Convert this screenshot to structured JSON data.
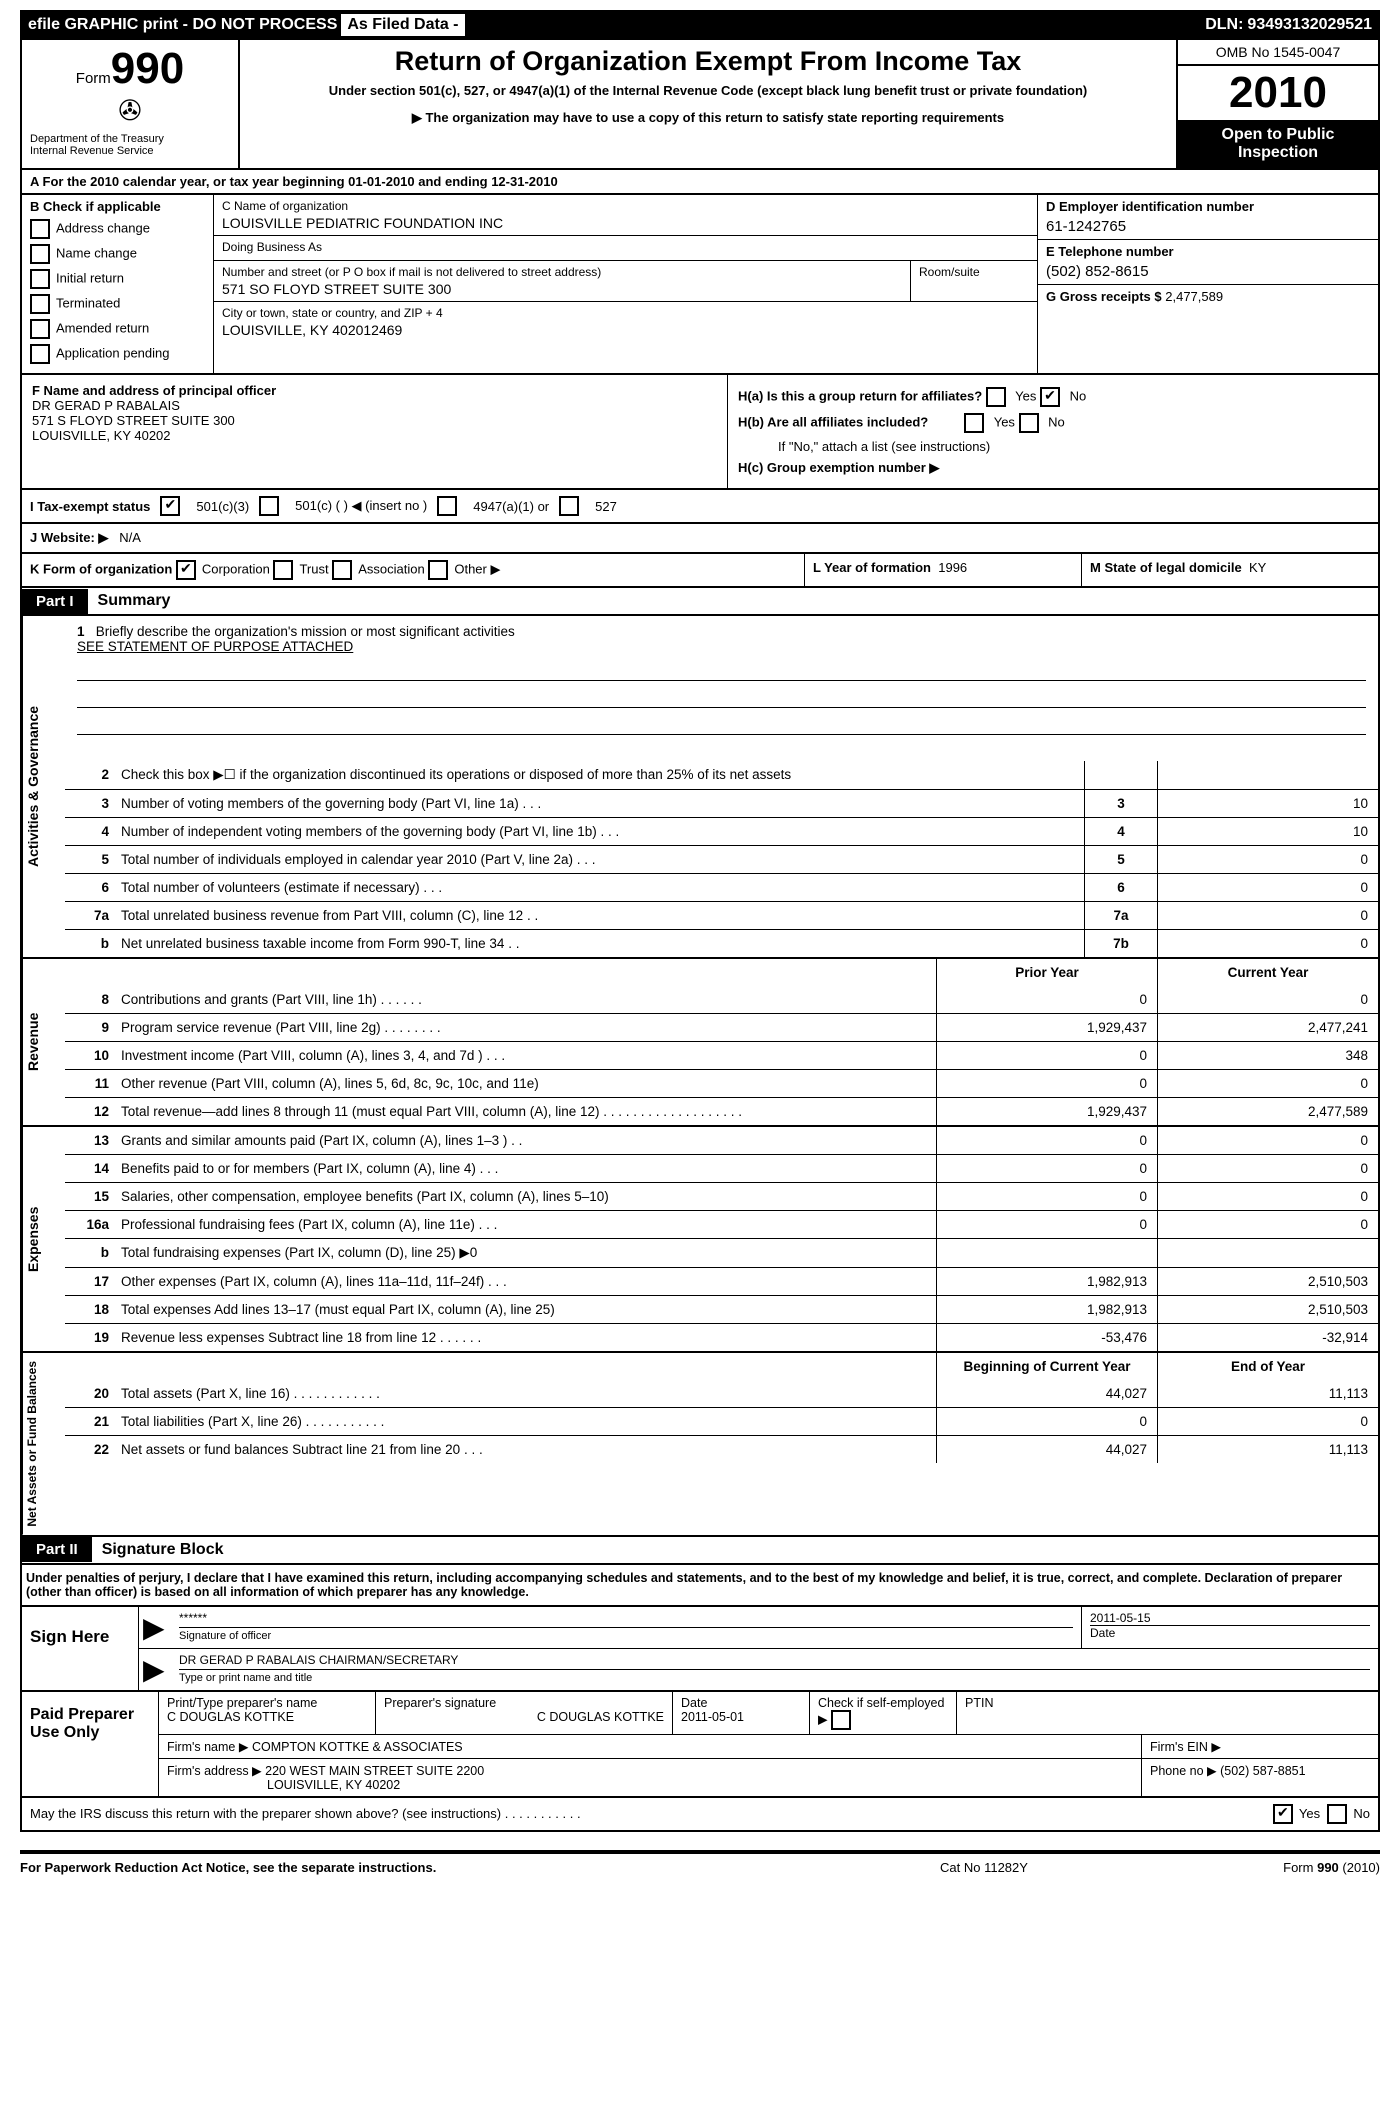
{
  "topbar": {
    "efile": "efile GRAPHIC print - DO NOT PROCESS",
    "asfiled": "As Filed Data -",
    "dln_label": "DLN:",
    "dln": "93493132029521"
  },
  "header": {
    "form_label": "Form",
    "form_num": "990",
    "dept": "Department of the Treasury",
    "irs": "Internal Revenue Service",
    "title": "Return of Organization Exempt From Income Tax",
    "sub": "Under section 501(c), 527, or 4947(a)(1) of the Internal Revenue Code (except black lung benefit trust or private foundation)",
    "note": "▶ The organization may have to use a copy of this return to satisfy state reporting requirements",
    "omb": "OMB No 1545-0047",
    "year": "2010",
    "open": "Open to Public Inspection"
  },
  "section_a": "A  For the 2010 calendar year, or tax year beginning 01-01-2010     and ending 12-31-2010",
  "col_b": {
    "label": "B  Check if applicable",
    "opts": [
      "Address change",
      "Name change",
      "Initial return",
      "Terminated",
      "Amended return",
      "Application pending"
    ]
  },
  "col_c": {
    "name_lbl": "C Name of organization",
    "name": "LOUISVILLE PEDIATRIC FOUNDATION INC",
    "dba_lbl": "Doing Business As",
    "dba": "",
    "street_lbl": "Number and street (or P O  box if mail is not delivered to street address)",
    "street": "571 SO FLOYD STREET SUITE 300",
    "room_lbl": "Room/suite",
    "city_lbl": "City or town, state or country, and ZIP + 4",
    "city": "LOUISVILLE, KY  402012469"
  },
  "col_d": {
    "ein_lbl": "D Employer identification number",
    "ein": "61-1242765",
    "tel_lbl": "E Telephone number",
    "tel": "(502) 852-8615",
    "gross_lbl": "G Gross receipts $",
    "gross": "2,477,589"
  },
  "f": {
    "label": "F    Name and address of principal officer",
    "name": "DR GERAD P RABALAIS",
    "addr1": "571 S FLOYD STREET SUITE 300",
    "addr2": "LOUISVILLE, KY  40202"
  },
  "h": {
    "ha": "H(a)  Is this a group return for affiliates?",
    "hb": "H(b)  Are all affiliates included?",
    "hb_note": "If \"No,\" attach a list  (see instructions)",
    "hc": "H(c)   Group exemption number ▶"
  },
  "row_i": {
    "label": "I    Tax-exempt status",
    "o1": "501(c)(3)",
    "o2": "501(c) (    ) ◀ (insert no )",
    "o3": "4947(a)(1) or",
    "o4": "527"
  },
  "row_j": {
    "label": "J   Website: ▶",
    "val": "N/A"
  },
  "row_k": {
    "k1_label": "K Form of organization",
    "k1_opts": [
      "Corporation",
      "Trust",
      "Association",
      "Other ▶"
    ],
    "k2_label": "L Year of formation",
    "k2_val": "1996",
    "k3_label": "M State of legal domicile",
    "k3_val": "KY"
  },
  "part1": {
    "hdr": "Part I",
    "title": "Summary"
  },
  "mission": {
    "num": "1",
    "lbl": "Briefly describe the organization's mission or most significant activities",
    "val": "SEE STATEMENT OF PURPOSE ATTACHED"
  },
  "gov_lines": [
    {
      "n": "2",
      "t": "Check this box ▶☐ if the organization discontinued its operations or disposed of more than 25% of its net assets",
      "c1": "",
      "c2": ""
    },
    {
      "n": "3",
      "t": "Number of voting members of the governing body (Part VI, line 1a)   .   .   .",
      "c1": "3",
      "c2": "10"
    },
    {
      "n": "4",
      "t": "Number of independent voting members of the governing body (Part VI, line 1b)   .   .   .",
      "c1": "4",
      "c2": "10"
    },
    {
      "n": "5",
      "t": "Total number of individuals employed in calendar year 2010 (Part V, line 2a)   .   .   .",
      "c1": "5",
      "c2": "0"
    },
    {
      "n": "6",
      "t": "Total number of volunteers (estimate if necessary)   .   .   .",
      "c1": "6",
      "c2": "0"
    },
    {
      "n": "7a",
      "t": "Total unrelated business revenue from Part VIII, column (C), line 12   .   .",
      "c1": "7a",
      "c2": "0"
    },
    {
      "n": "b",
      "t": "Net unrelated business taxable income from Form 990-T, line 34   .   .",
      "c1": "7b",
      "c2": "0"
    }
  ],
  "rev_hdr": {
    "prior": "Prior Year",
    "curr": "Current Year"
  },
  "rev_lines": [
    {
      "n": "8",
      "t": "Contributions and grants (Part VIII, line 1h)   .   .   .   .   .   .",
      "p": "0",
      "c": "0"
    },
    {
      "n": "9",
      "t": "Program service revenue (Part VIII, line 2g)   .   .   .   .   .   .   .   .",
      "p": "1,929,437",
      "c": "2,477,241"
    },
    {
      "n": "10",
      "t": "Investment income (Part VIII, column (A), lines 3, 4, and 7d )   .   .   .",
      "p": "0",
      "c": "348"
    },
    {
      "n": "11",
      "t": "Other revenue (Part VIII, column (A), lines 5, 6d, 8c, 9c, 10c, and 11e)",
      "p": "0",
      "c": "0"
    },
    {
      "n": "12",
      "t": "Total revenue—add lines 8 through 11 (must equal Part VIII, column (A), line 12) .   .   .   .   .   .   .   .   .   .   .   .   .   .   .   .   .   .   .",
      "p": "1,929,437",
      "c": "2,477,589"
    }
  ],
  "exp_lines": [
    {
      "n": "13",
      "t": "Grants and similar amounts paid (Part IX, column (A), lines 1–3 )   .   .",
      "p": "0",
      "c": "0"
    },
    {
      "n": "14",
      "t": "Benefits paid to or for members (Part IX, column (A), line 4)   .   .   .",
      "p": "0",
      "c": "0"
    },
    {
      "n": "15",
      "t": "Salaries, other compensation, employee benefits (Part IX, column (A), lines 5–10)",
      "p": "0",
      "c": "0"
    },
    {
      "n": "16a",
      "t": "Professional fundraising fees (Part IX, column (A), line 11e)   .   .   .",
      "p": "0",
      "c": "0"
    },
    {
      "n": "b",
      "t": "Total fundraising expenses (Part IX, column (D), line 25) ▶0",
      "p": "",
      "c": ""
    },
    {
      "n": "17",
      "t": "Other expenses (Part IX, column (A), lines 11a–11d, 11f–24f)   .   .   .",
      "p": "1,982,913",
      "c": "2,510,503"
    },
    {
      "n": "18",
      "t": "Total expenses  Add lines 13–17 (must equal Part IX, column (A), line 25)",
      "p": "1,982,913",
      "c": "2,510,503"
    },
    {
      "n": "19",
      "t": "Revenue less expenses  Subtract line 18 from line 12   .   .   .   .   .   .",
      "p": "-53,476",
      "c": "-32,914"
    }
  ],
  "na_hdr": {
    "begin": "Beginning of Current Year",
    "end": "End of Year"
  },
  "na_lines": [
    {
      "n": "20",
      "t": "Total assets (Part X, line 16)   .   .   .   .   .   .   .   .   .   .   .   .",
      "p": "44,027",
      "c": "11,113"
    },
    {
      "n": "21",
      "t": "Total liabilities (Part X, line 26)   .   .   .   .   .   .   .   .   .   .   .",
      "p": "0",
      "c": "0"
    },
    {
      "n": "22",
      "t": "Net assets or fund balances  Subtract line 21 from line 20   .   .   .",
      "p": "44,027",
      "c": "11,113"
    }
  ],
  "vert_labels": {
    "gov": "Activities & Governance",
    "rev": "Revenue",
    "exp": "Expenses",
    "na": "Net Assets or Fund Balances"
  },
  "part2": {
    "hdr": "Part II",
    "title": "Signature Block"
  },
  "sig_decl": "Under penalties of perjury, I declare that I have examined this return, including accompanying schedules and statements, and to the best of my knowledge and belief, it is true, correct, and complete. Declaration of preparer (other than officer) is based on all information of which preparer has any knowledge.",
  "sign": {
    "left": "Sign Here",
    "sig_val": "******",
    "sig_lbl": "Signature of officer",
    "date": "2011-05-15",
    "date_lbl": "Date",
    "name_val": "DR GERAD P RABALAIS CHAIRMAN/SECRETARY",
    "name_lbl": "Type or print name and title"
  },
  "prep": {
    "left": "Paid Preparer Use Only",
    "r1": {
      "c1_lbl": "Print/Type preparer's name",
      "c1_val": "C DOUGLAS KOTTKE",
      "c2_lbl": "Preparer's signature",
      "c2_val": "C DOUGLAS KOTTKE",
      "c3_lbl": "Date",
      "c3_val": "2011-05-01",
      "c4_lbl": "Check if self-employed ▶",
      "c5_lbl": "PTIN"
    },
    "r2": {
      "lbl": "Firm's name  ▶",
      "val": "COMPTON KOTTKE & ASSOCIATES",
      "ein_lbl": "Firm's EIN   ▶"
    },
    "r3": {
      "lbl": "Firm's address ▶",
      "val1": "220 WEST MAIN STREET SUITE 2200",
      "val2": "LOUISVILLE, KY  40202",
      "ph_lbl": "Phone no  ▶",
      "ph": "(502) 587-8851"
    }
  },
  "discuss": {
    "text": "May the IRS discuss this return with the preparer shown above? (see instructions)   .   .   .   .   .   .   .   .   .   .   .",
    "yes": "Yes",
    "no": "No"
  },
  "footer": {
    "l": "For Paperwork Reduction Act Notice, see the separate instructions.",
    "m": "Cat No 11282Y",
    "r": "Form 990 (2010)"
  }
}
